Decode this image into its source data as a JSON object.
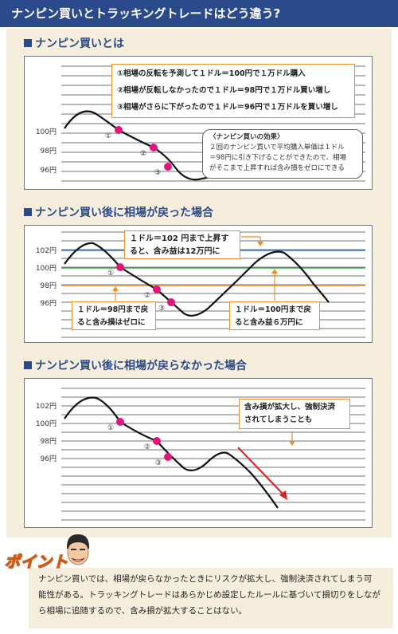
{
  "page": {
    "title": "ナンピン買いとトラッキングトレードはどう違う?",
    "colors": {
      "header": "#2b4a8b",
      "panel": "#f6eedd",
      "marker": "#e4147b",
      "accent": "#e8912c",
      "down_arrow": "#e02020",
      "green_line": "#3aa64a",
      "blue_line": "#3a7fc4"
    }
  },
  "sections": [
    {
      "heading": "ナンピン買いとは",
      "y_labels": [
        "100円",
        "98円",
        "96円"
      ],
      "markers": [
        "①",
        "②",
        "③"
      ],
      "steps": [
        "①相場の反転を予測して１ドル＝100円で１万ドル購入",
        "②相場が反転しなかったので１ドル＝98円で１万ドル買い増し",
        "③相場がさらに下がったので１ドル＝96円で１万ドルを買い増し"
      ],
      "effect_title": "〈ナンピン買いの効果〉",
      "effect_lines": [
        "２回のナンピン買いで平均購入単価は１ドル",
        "＝98円に引き下げることができたので、相場",
        "がそこまで上昇すれば含み損をゼロにできる"
      ]
    },
    {
      "heading": "ナンピン買い後に相場が戻った場合",
      "y_labels": [
        "102円",
        "100円",
        "98円",
        "96円"
      ],
      "markers": [
        "①",
        "②",
        "③"
      ],
      "callout_top": [
        "１ドル＝102 円まで上昇す",
        "ると、含み益は12万円に"
      ],
      "callout_left": [
        "１ドル＝98円まで戻",
        "ると含み損はゼロに"
      ],
      "callout_right": [
        "１ドル＝100円まで戻",
        "ると含み益６万円に"
      ]
    },
    {
      "heading": "ナンピン買い後に相場が戻らなかった場合",
      "y_labels": [
        "102円",
        "100円",
        "98円",
        "96円"
      ],
      "markers": [
        "①",
        "②",
        "③"
      ],
      "callout": [
        "含み損が拡大し、強制決済",
        "されてしまうことも"
      ]
    }
  ],
  "point": {
    "label": "ポイント",
    "lines": [
      "ナンピン買いでは、相場が戻らなかったときにリスクが拡大し、強制決済されてしまう可",
      "能性がある。トラッキングトレードはあらかじめ設定したルールに基づいて損切りをしなが",
      "ら相場に追随するので、含み損が拡大することはない。"
    ]
  }
}
